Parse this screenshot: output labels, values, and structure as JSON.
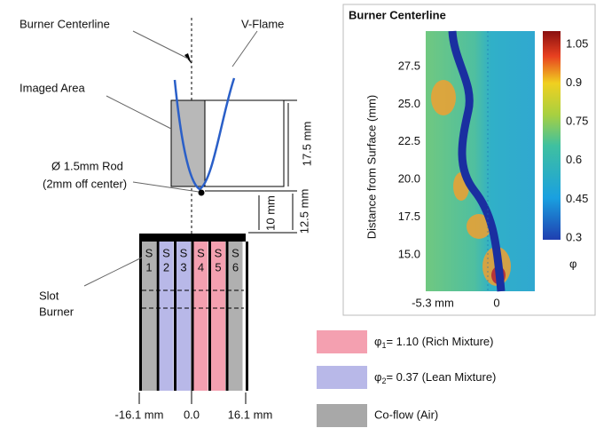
{
  "left": {
    "centerline_label": "Burner Centerline",
    "flame_label": "V-Flame",
    "imaged_area_label": "Imaged Area",
    "rod_label": [
      "Ø 1.5mm Rod",
      "(2mm off center)"
    ],
    "dimensions": [
      "17.5 mm",
      "12.5 mm",
      "10 mm"
    ],
    "burner_label": [
      "Slot",
      "Burner"
    ],
    "slots": [
      {
        "letter": "S",
        "number": "1"
      },
      {
        "letter": "S",
        "number": "2"
      },
      {
        "letter": "S",
        "number": "3"
      },
      {
        "letter": "S",
        "number": "4"
      },
      {
        "letter": "S",
        "number": "5"
      },
      {
        "letter": "S",
        "number": "6"
      }
    ],
    "positions": [
      "-16.1 mm",
      "0.0",
      "16.1 mm"
    ]
  },
  "map": {
    "title": "Burner Centerline",
    "y_axis_label": "Distance from Surface (mm)",
    "y_ticks": [
      "27.5",
      "25.0",
      "22.5",
      "20.0",
      "17.5",
      "15.0"
    ],
    "x_ticks": [
      "-5.3 mm",
      "0"
    ],
    "colorbar_ticks": [
      "1.05",
      "0.9",
      "0.75",
      "0.6",
      "0.45",
      "0.3"
    ],
    "colorbar_label": "φ"
  },
  "legend": [
    {
      "symbol": "φ",
      "subscript": "1",
      "text": "= 1.10 (Rich Mixture)"
    },
    {
      "symbol": "φ",
      "subscript": "2",
      "text": "= 0.37 (Lean Mixture)"
    },
    {
      "text": "Co-flow (Air)"
    }
  ]
}
